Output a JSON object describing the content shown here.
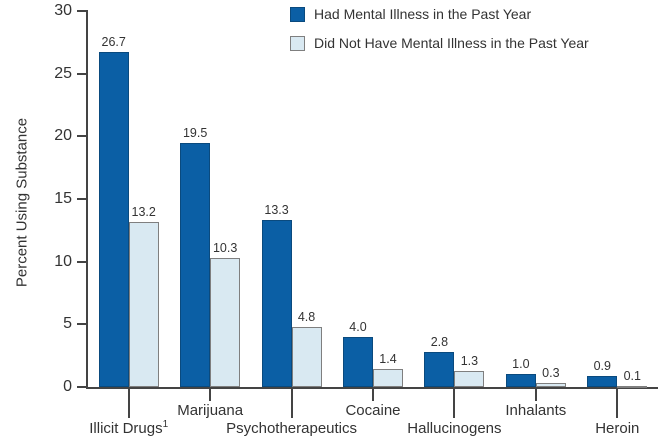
{
  "chart_data": {
    "type": "bar",
    "title": "",
    "ylabel": "Percent Using Substance",
    "xlabel": "",
    "ylim": [
      0,
      30
    ],
    "yticks": [
      0,
      5,
      10,
      15,
      20,
      25,
      30
    ],
    "grid": false,
    "legend_position": "top-right",
    "value_labels": true,
    "categories": [
      {
        "label": "Illicit Drugs",
        "superscript": "1"
      },
      {
        "label": "Marijuana",
        "superscript": ""
      },
      {
        "label": "Psychotherapeutics",
        "superscript": ""
      },
      {
        "label": "Cocaine",
        "superscript": ""
      },
      {
        "label": "Hallucinogens",
        "superscript": ""
      },
      {
        "label": "Inhalants",
        "superscript": ""
      },
      {
        "label": "Heroin",
        "superscript": ""
      }
    ],
    "series": [
      {
        "name": "Had Mental Illness in the Past Year",
        "color": "#0B5FA5",
        "border": "#0A4A7E",
        "values": [
          26.7,
          19.5,
          13.3,
          4.0,
          2.8,
          1.0,
          0.9
        ]
      },
      {
        "name": "Did Not Have Mental Illness in the Past Year",
        "color": "#D9E9F2",
        "border": "#7F7F7F",
        "values": [
          13.2,
          10.3,
          4.8,
          1.4,
          1.3,
          0.3,
          0.1
        ]
      }
    ]
  },
  "colors": {
    "axis": "#444444",
    "text": "#333333",
    "background": "#FFFFFF"
  }
}
